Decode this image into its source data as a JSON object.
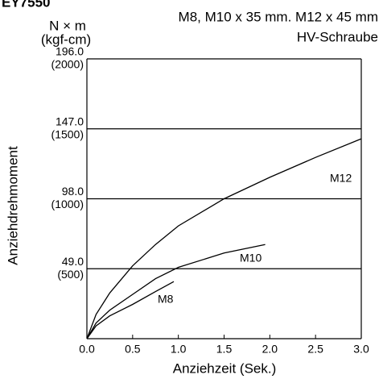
{
  "chart_data": {
    "type": "line",
    "title": "EY7550",
    "subtitle": [
      "M8, M10 x 35 mm. M12 x 45 mm",
      "HV-Schraube"
    ],
    "y_unit": [
      "N × m",
      "(kgf-cm)"
    ],
    "y_label": "Anziehdrehmoment",
    "x_label": "Anziehzeit (Sek.)",
    "xlim": [
      0,
      3
    ],
    "xticks": [
      {
        "value": 0,
        "label": "0.0"
      },
      {
        "value": 0.5,
        "label": "0.5"
      },
      {
        "value": 1,
        "label": "1.0"
      },
      {
        "value": 1.5,
        "label": "1.5"
      },
      {
        "value": 2,
        "label": "2.0"
      },
      {
        "value": 2.5,
        "label": "2.5"
      },
      {
        "value": 3,
        "label": "3.0"
      }
    ],
    "ylim": [
      0,
      196
    ],
    "yticks": [
      {
        "value": 49,
        "label": "49.0"
      },
      {
        "value": 98,
        "label": "98.0"
      },
      {
        "value": 147,
        "label": "147.0"
      },
      {
        "value": 196,
        "label": "196.0"
      }
    ],
    "ytick_sublabels": [
      "(500)",
      "(1000)",
      "(1500)",
      "(2000)"
    ],
    "grid": true,
    "series": [
      {
        "name": "M12",
        "color": "#000000",
        "x": [
          0,
          0.1,
          0.25,
          0.5,
          0.75,
          1,
          1.5,
          2,
          2.5,
          3
        ],
        "values": [
          0,
          17,
          32,
          51,
          66,
          79,
          98,
          113,
          127,
          140
        ]
      },
      {
        "name": "M10",
        "color": "#000000",
        "x": [
          0,
          0.1,
          0.25,
          0.5,
          0.75,
          1,
          1.5,
          1.95
        ],
        "values": [
          0,
          11,
          20,
          31,
          42,
          50,
          60,
          66
        ]
      },
      {
        "name": "M8",
        "color": "#000000",
        "x": [
          0,
          0.1,
          0.25,
          0.5,
          0.75,
          0.95
        ],
        "values": [
          0,
          9,
          16,
          24,
          33,
          40
        ]
      }
    ]
  }
}
